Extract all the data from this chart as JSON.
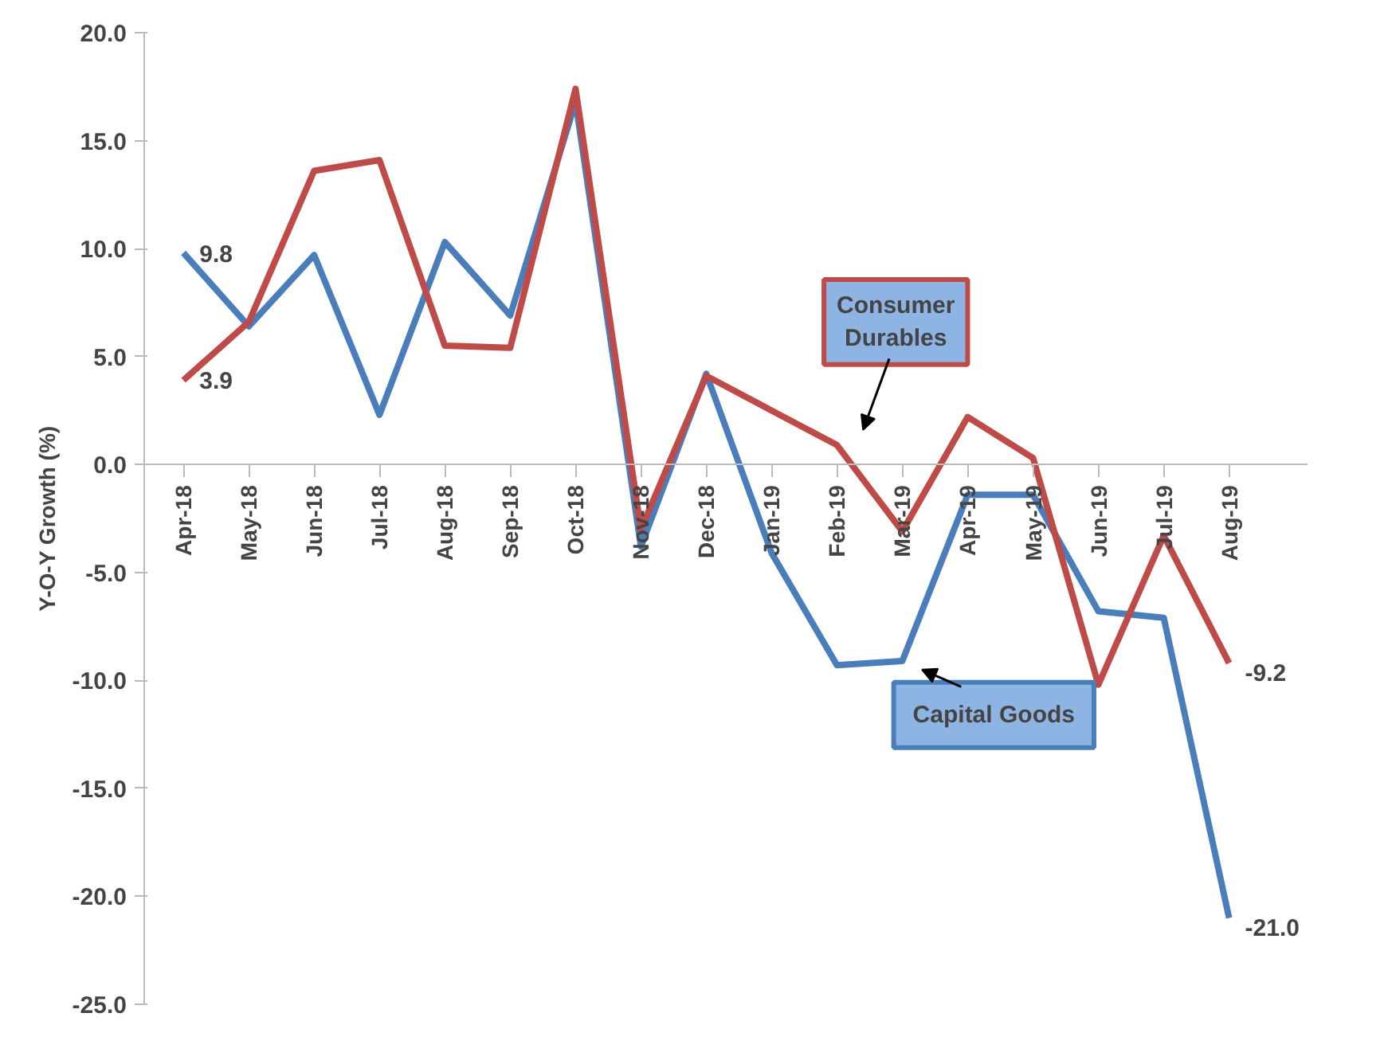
{
  "chart_data": {
    "type": "line",
    "ylabel": "Y-O-Y Growth (%)",
    "categories": [
      "Apr-18",
      "May-18",
      "Jun-18",
      "Jul-18",
      "Aug-18",
      "Sep-18",
      "Oct-18",
      "Nov-18",
      "Dec-18",
      "Jan-19",
      "Feb-19",
      "Mar-19",
      "Apr-19",
      "May-19",
      "Jun-19",
      "Jul-19",
      "Aug-19"
    ],
    "series": [
      {
        "name": "Capital Goods",
        "color": "#4a7ebb",
        "values": [
          9.8,
          6.4,
          9.7,
          2.3,
          10.3,
          6.9,
          16.8,
          -3.8,
          4.2,
          -4.1,
          -9.3,
          -9.1,
          -1.4,
          -1.4,
          -6.8,
          -7.1,
          -21.0
        ],
        "value_labels": [
          "9.8",
          null,
          null,
          null,
          null,
          null,
          null,
          null,
          null,
          null,
          null,
          null,
          null,
          null,
          null,
          null,
          "-21.0"
        ]
      },
      {
        "name": "Consumer Durables",
        "color": "#be4b48",
        "values": [
          3.9,
          6.6,
          13.6,
          14.1,
          5.5,
          5.4,
          17.4,
          -3.0,
          4.1,
          2.5,
          0.9,
          -3.1,
          2.2,
          0.3,
          -10.2,
          -3.3,
          -9.2
        ],
        "value_labels": [
          "3.9",
          null,
          null,
          null,
          null,
          null,
          null,
          null,
          null,
          null,
          null,
          null,
          null,
          null,
          null,
          null,
          "-9.2"
        ]
      }
    ],
    "ylim": [
      -25,
      20
    ],
    "yticks": [
      {
        "value": -25,
        "label": "-25.0"
      },
      {
        "value": -20,
        "label": "-20.0"
      },
      {
        "value": -15,
        "label": "-15.0"
      },
      {
        "value": -10,
        "label": "-10.0"
      },
      {
        "value": -5,
        "label": "-5.0"
      },
      {
        "value": 0,
        "label": "0.0"
      },
      {
        "value": 5,
        "label": "5.0"
      },
      {
        "value": 10,
        "label": "10.0"
      },
      {
        "value": 15,
        "label": "15.0"
      },
      {
        "value": 20,
        "label": "20.0"
      }
    ],
    "grid": false
  }
}
